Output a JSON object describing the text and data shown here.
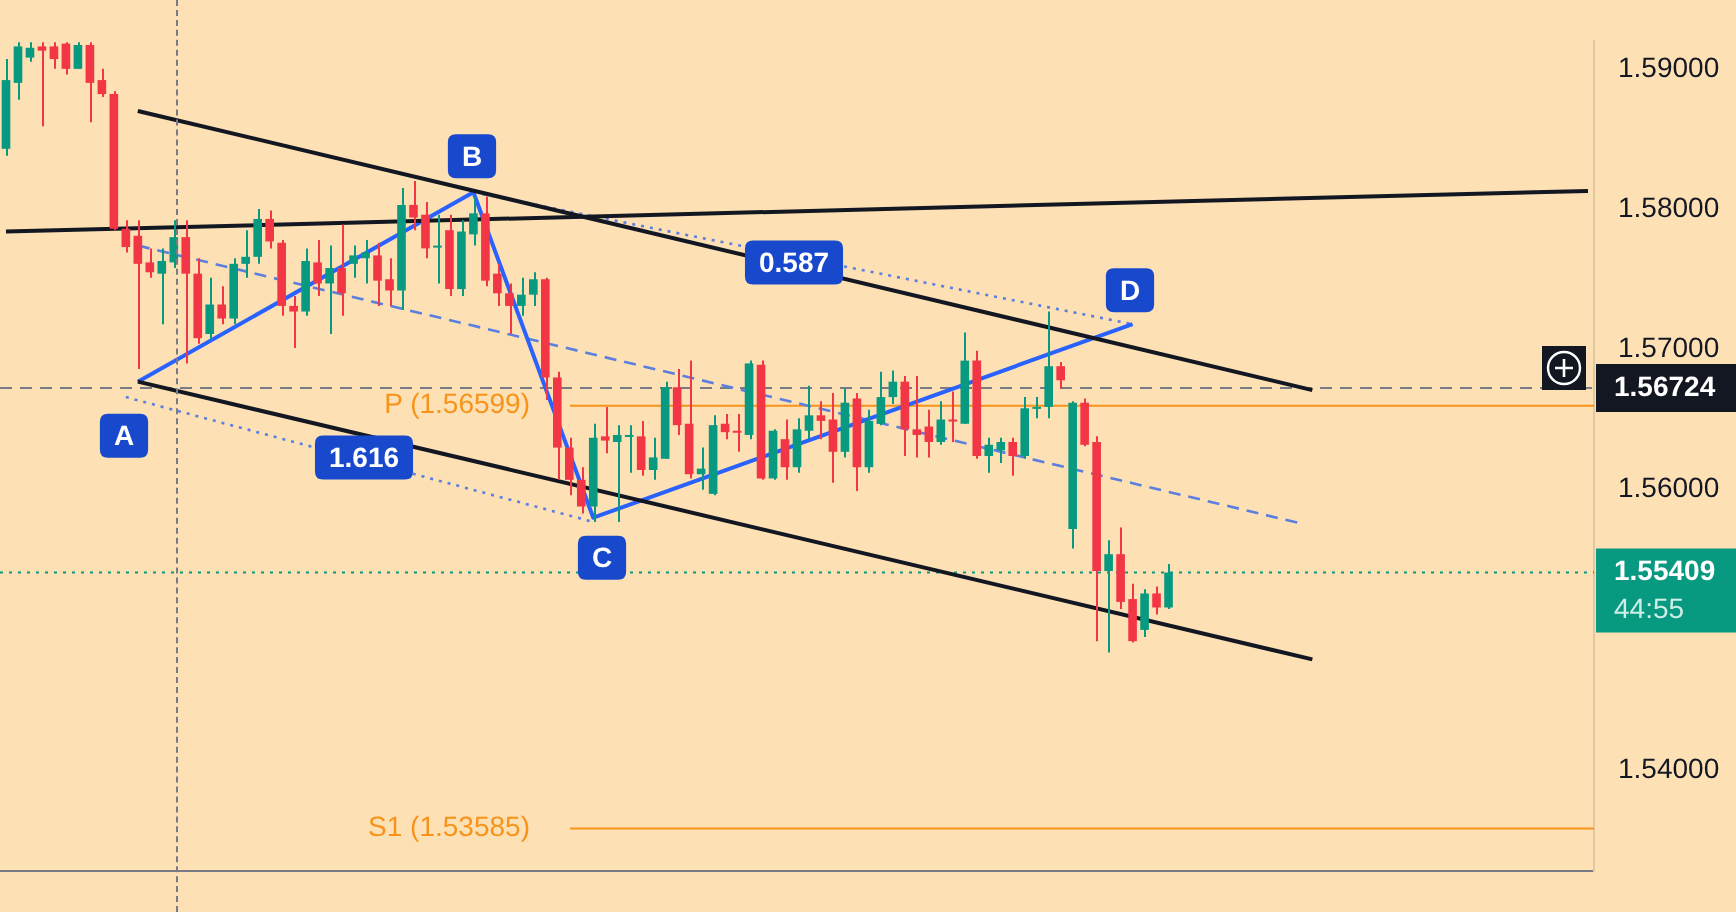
{
  "chart_data": {
    "type": "candlestick",
    "categories": [
      null,
      null,
      null,
      null,
      null,
      null,
      null,
      null,
      null,
      null,
      null,
      null,
      null,
      null,
      null,
      null,
      null,
      null,
      null,
      null,
      null,
      null,
      null,
      null,
      null,
      null,
      null,
      null,
      null,
      null,
      null,
      null,
      null,
      null,
      null,
      null,
      null,
      null,
      null,
      null,
      null,
      null,
      null,
      null,
      null,
      null,
      null,
      null,
      null,
      null,
      null,
      null,
      null,
      null,
      null,
      null,
      null,
      null,
      null,
      null,
      null,
      null,
      null,
      null,
      null,
      null,
      null,
      null,
      null,
      null,
      null,
      null,
      null,
      null,
      null,
      null,
      null,
      null,
      null,
      null,
      null,
      null,
      null,
      null,
      null,
      null,
      null,
      null,
      null,
      null,
      null,
      null,
      null,
      null,
      null,
      null,
      null,
      null,
      null,
      null,
      null,
      null,
      null,
      null,
      null,
      null,
      null,
      null,
      null,
      null,
      null,
      null,
      null,
      null,
      null,
      null,
      null,
      null,
      null,
      null,
      null,
      null,
      null,
      null,
      null,
      null,
      null,
      null,
      null,
      null,
      null,
      null,
      null
    ],
    "ohlc": [
      [
        1.5843,
        1.5907,
        1.5838,
        1.5892
      ],
      [
        1.589,
        1.5919,
        1.5878,
        1.5916
      ],
      [
        1.5908,
        1.5919,
        1.5905,
        1.5915
      ],
      [
        1.5916,
        1.5919,
        1.5859,
        1.5913
      ],
      [
        1.5916,
        1.5919,
        1.59,
        1.5907
      ],
      [
        1.5918,
        1.5919,
        1.5896,
        1.59
      ],
      [
        1.59,
        1.5919,
        1.59,
        1.5917
      ],
      [
        1.5917,
        1.5919,
        1.5862,
        1.589
      ],
      [
        1.5892,
        1.59,
        1.588,
        1.5882
      ],
      [
        1.5882,
        1.5884,
        1.5785,
        1.5786
      ],
      [
        1.5786,
        1.5792,
        1.5769,
        1.5773
      ],
      [
        1.5781,
        1.5792,
        1.5686,
        1.5761
      ],
      [
        1.5762,
        1.5772,
        1.5751,
        1.5755
      ],
      [
        1.5754,
        1.5772,
        1.5718,
        1.5763
      ],
      [
        1.5762,
        1.5792,
        1.5758,
        1.578
      ],
      [
        1.578,
        1.5792,
        1.569,
        1.5754
      ],
      [
        1.5754,
        1.5765,
        1.5704,
        1.5708
      ],
      [
        1.5711,
        1.5751,
        1.5707,
        1.5732
      ],
      [
        1.5732,
        1.5745,
        1.5718,
        1.5722
      ],
      [
        1.5722,
        1.5765,
        1.5718,
        1.5761
      ],
      [
        1.5761,
        1.5785,
        1.5751,
        1.5766
      ],
      [
        1.5766,
        1.58,
        1.5761,
        1.5793
      ],
      [
        1.5793,
        1.5799,
        1.5772,
        1.5777
      ],
      [
        1.5776,
        1.5778,
        1.5724,
        1.5731
      ],
      [
        1.5731,
        1.5738,
        1.5701,
        1.5727
      ],
      [
        1.5727,
        1.5772,
        1.5724,
        1.5763
      ],
      [
        1.5762,
        1.5778,
        1.5738,
        1.5747
      ],
      [
        1.5747,
        1.5774,
        1.5711,
        1.5758
      ],
      [
        1.5758,
        1.5789,
        1.5724,
        1.574
      ],
      [
        1.5761,
        1.5774,
        1.5751,
        1.5767
      ],
      [
        1.5765,
        1.5778,
        1.5747,
        1.5769
      ],
      [
        1.5767,
        1.5776,
        1.5731,
        1.5749
      ],
      [
        1.575,
        1.5765,
        1.5731,
        1.5742
      ],
      [
        1.5742,
        1.5815,
        1.5728,
        1.5803
      ],
      [
        1.5803,
        1.582,
        1.5785,
        1.5794
      ],
      [
        1.5796,
        1.5805,
        1.5765,
        1.5772
      ],
      [
        1.5773,
        1.5796,
        1.5747,
        1.5774
      ],
      [
        1.5785,
        1.5796,
        1.5738,
        1.5743
      ],
      [
        1.5743,
        1.5792,
        1.5738,
        1.5784
      ],
      [
        1.5782,
        1.5809,
        1.5774,
        1.5797
      ],
      [
        1.5797,
        1.5809,
        1.5745,
        1.5749
      ],
      [
        1.5754,
        1.5761,
        1.5731,
        1.574
      ],
      [
        1.574,
        1.5747,
        1.5711,
        1.5731
      ],
      [
        1.5731,
        1.5751,
        1.5724,
        1.5739
      ],
      [
        1.5739,
        1.5755,
        1.5731,
        1.575
      ],
      [
        1.575,
        1.5751,
        1.5664,
        1.568
      ],
      [
        1.568,
        1.5684,
        1.5607,
        1.563
      ],
      [
        1.563,
        1.5637,
        1.5596,
        1.5607
      ],
      [
        1.5607,
        1.5616,
        1.5583,
        1.5588
      ],
      [
        1.5588,
        1.5647,
        1.5577,
        1.5637
      ],
      [
        1.5638,
        1.5659,
        1.5626,
        1.5635
      ],
      [
        1.5634,
        1.5646,
        1.5577,
        1.5639
      ],
      [
        1.5638,
        1.5646,
        1.5612,
        1.5639
      ],
      [
        1.5638,
        1.5649,
        1.561,
        1.5614
      ],
      [
        1.5614,
        1.5637,
        1.5607,
        1.5623
      ],
      [
        1.5622,
        1.5677,
        1.5622,
        1.5673
      ],
      [
        1.5673,
        1.5686,
        1.5639,
        1.5646
      ],
      [
        1.5647,
        1.5692,
        1.5608,
        1.5611
      ],
      [
        1.5611,
        1.563,
        1.56,
        1.5615
      ],
      [
        1.5597,
        1.5653,
        1.5596,
        1.5646
      ],
      [
        1.5647,
        1.5654,
        1.5636,
        1.5641
      ],
      [
        1.5642,
        1.5654,
        1.5627,
        1.5641
      ],
      [
        1.5639,
        1.5692,
        1.5636,
        1.569
      ],
      [
        1.5689,
        1.5692,
        1.5607,
        1.5608
      ],
      [
        1.5608,
        1.5643,
        1.5607,
        1.5642
      ],
      [
        1.5636,
        1.565,
        1.5607,
        1.5616
      ],
      [
        1.5616,
        1.5651,
        1.5612,
        1.5643
      ],
      [
        1.5642,
        1.5674,
        1.5636,
        1.5653
      ],
      [
        1.5653,
        1.5663,
        1.5636,
        1.5649
      ],
      [
        1.565,
        1.5669,
        1.5605,
        1.5627
      ],
      [
        1.5627,
        1.5672,
        1.5623,
        1.5662
      ],
      [
        1.5665,
        1.5669,
        1.5599,
        1.5616
      ],
      [
        1.5616,
        1.5657,
        1.5612,
        1.5649
      ],
      [
        1.5647,
        1.5684,
        1.5646,
        1.5666
      ],
      [
        1.5666,
        1.5685,
        1.5661,
        1.5677
      ],
      [
        1.5677,
        1.5681,
        1.5624,
        1.5643
      ],
      [
        1.5643,
        1.5681,
        1.5623,
        1.5639
      ],
      [
        1.5645,
        1.5657,
        1.5623,
        1.5634
      ],
      [
        1.5634,
        1.5663,
        1.5632,
        1.565
      ],
      [
        1.565,
        1.567,
        1.5634,
        1.5649
      ],
      [
        1.5647,
        1.5712,
        1.5647,
        1.5692
      ],
      [
        1.5692,
        1.5699,
        1.5622,
        1.5624
      ],
      [
        1.5624,
        1.5637,
        1.5612,
        1.5632
      ],
      [
        1.5628,
        1.5637,
        1.5619,
        1.5634
      ],
      [
        1.5634,
        1.5637,
        1.561,
        1.5624
      ],
      [
        1.5624,
        1.5666,
        1.5622,
        1.5658
      ],
      [
        1.5658,
        1.5666,
        1.5651,
        1.5659
      ],
      [
        1.5659,
        1.5727,
        1.5651,
        1.5688
      ],
      [
        1.5688,
        1.5691,
        1.5672,
        1.5678
      ],
      [
        1.5572,
        1.5663,
        1.5558,
        1.5662
      ],
      [
        1.5662,
        1.5665,
        1.5631,
        1.5632
      ],
      [
        1.5634,
        1.5638,
        1.5492,
        1.5542
      ],
      [
        1.5542,
        1.5564,
        1.5484,
        1.5554
      ],
      [
        1.5554,
        1.5573,
        1.5515,
        1.552
      ],
      [
        1.5522,
        1.5533,
        1.5491,
        1.5492
      ],
      [
        1.55,
        1.5529,
        1.5495,
        1.5526
      ],
      [
        1.5526,
        1.5531,
        1.5511,
        1.5516
      ],
      [
        1.5516,
        1.5547,
        1.5515,
        1.55409
      ],
      null,
      null,
      null,
      null,
      null,
      null,
      null,
      null,
      null,
      null,
      null,
      null,
      null,
      null,
      null,
      null,
      null,
      null,
      null,
      null,
      null,
      null,
      null,
      null,
      null,
      null,
      null,
      null,
      null,
      null,
      null,
      null,
      null,
      null,
      null
    ],
    "colors": [
      "#089981",
      "#089981",
      "#089981",
      "#f23645",
      "#f23645",
      "#f23645",
      "#089981",
      "#f23645",
      "#f23645",
      "#f23645",
      "#f23645",
      "#f23645",
      "#f23645",
      "#089981",
      "#089981",
      "#f23645",
      "#f23645",
      "#089981",
      "#f23645",
      "#089981",
      "#089981",
      "#089981",
      "#f23645",
      "#f23645",
      "#f23645",
      "#089981",
      "#f23645",
      "#089981",
      "#f23645",
      "#089981",
      "#089981",
      "#f23645",
      "#f23645",
      "#089981",
      "#f23645",
      "#f23645",
      "#089981",
      "#f23645",
      "#089981",
      "#089981",
      "#f23645",
      "#f23645",
      "#f23645",
      "#089981",
      "#089981",
      "#f23645",
      "#f23645",
      "#f23645",
      "#f23645",
      "#089981",
      "#f23645",
      "#089981",
      "#089981",
      "#f23645",
      "#089981",
      "#089981",
      "#f23645",
      "#f23645",
      "#089981",
      "#089981",
      "#f23645",
      "#f23645",
      "#089981",
      "#f23645",
      "#089981",
      "#f23645",
      "#089981",
      "#089981",
      "#f23645",
      "#f23645",
      "#089981",
      "#f23645",
      "#089981",
      "#089981",
      "#089981",
      "#f23645",
      "#f23645",
      "#f23645",
      "#089981",
      "#f23645",
      "#089981",
      "#f23645",
      "#089981",
      "#089981",
      "#f23645",
      "#089981",
      "#089981",
      "#089981",
      "#f23645",
      "#089981",
      "#f23645",
      "#f23645",
      "#089981",
      "#f23645",
      "#f23645",
      "#089981",
      "#f23645",
      "#089981",
      null,
      null,
      null,
      null,
      null,
      null,
      null,
      null,
      null,
      null,
      null,
      null,
      null,
      null,
      null,
      null,
      null,
      null,
      null,
      null,
      null,
      null,
      null,
      null,
      null,
      null,
      null,
      null,
      null,
      null,
      null,
      null,
      null,
      null,
      null
    ],
    "series": [
      {
        "type": "line",
        "color": "#131722",
        "line_style": "solid",
        "values": [
          null,
          null,
          null,
          null,
          null,
          null,
          null,
          null,
          null,
          null,
          null,
          1.587,
          null,
          null,
          null,
          null,
          null,
          null,
          null,
          null,
          null,
          null,
          null,
          null,
          null,
          null,
          null,
          null,
          null,
          null,
          null,
          null,
          null,
          null,
          null,
          null,
          null,
          null,
          null,
          null,
          null,
          null,
          null,
          null,
          null,
          null,
          null,
          null,
          null,
          null,
          null,
          null,
          null,
          null,
          null,
          null,
          null,
          null,
          null,
          null,
          null,
          null,
          null,
          null,
          null,
          null,
          null,
          null,
          null,
          null,
          null,
          null,
          null,
          null,
          null,
          null,
          null,
          null,
          null,
          null,
          null,
          null,
          null,
          null,
          null,
          null,
          null,
          null,
          null,
          null,
          null,
          null,
          null,
          null,
          null,
          null,
          null,
          null,
          null,
          null,
          null,
          null,
          null,
          null,
          null,
          null,
          null,
          null,
          null,
          1.5671,
          null,
          null,
          null,
          null,
          null,
          null,
          null,
          null,
          null,
          null,
          null,
          null,
          null,
          null,
          null,
          null,
          null,
          null,
          null,
          null,
          null,
          null,
          null
        ]
      },
      {
        "type": "line",
        "color": "#131722",
        "line_style": "solid",
        "values": [
          null,
          null,
          null,
          null,
          null,
          null,
          null,
          null,
          null,
          null,
          null,
          1.5677,
          null,
          null,
          null,
          null,
          null,
          null,
          null,
          null,
          null,
          null,
          null,
          null,
          null,
          null,
          null,
          null,
          null,
          null,
          null,
          null,
          null,
          null,
          null,
          null,
          null,
          null,
          null,
          null,
          null,
          null,
          null,
          null,
          null,
          null,
          null,
          null,
          null,
          null,
          null,
          null,
          null,
          null,
          null,
          null,
          null,
          null,
          null,
          null,
          null,
          null,
          null,
          null,
          null,
          null,
          null,
          null,
          null,
          null,
          null,
          null,
          null,
          null,
          null,
          null,
          null,
          null,
          null,
          null,
          null,
          null,
          null,
          null,
          null,
          null,
          null,
          null,
          null,
          null,
          null,
          null,
          null,
          null,
          null,
          null,
          null,
          null,
          null,
          null,
          null,
          null,
          null,
          null,
          null,
          null,
          null,
          null,
          null,
          1.5479,
          null,
          null,
          null,
          null,
          null,
          null,
          null,
          null,
          null,
          null,
          null,
          null,
          null,
          null,
          null,
          null,
          null,
          null,
          null,
          null,
          null,
          null,
          null
        ]
      },
      {
        "type": "line",
        "color": "#131722",
        "line_style": "solid",
        "values": [
          1.5784,
          null,
          null,
          null,
          null,
          null,
          null,
          null,
          null,
          null,
          null,
          null,
          null,
          null,
          null,
          null,
          null,
          null,
          null,
          null,
          null,
          null,
          null,
          null,
          null,
          null,
          null,
          null,
          null,
          null,
          null,
          null,
          null,
          null,
          null,
          null,
          null,
          null,
          null,
          null,
          null,
          null,
          null,
          null,
          null,
          null,
          null,
          null,
          null,
          null,
          null,
          null,
          null,
          null,
          null,
          null,
          null,
          null,
          null,
          null,
          null,
          null,
          null,
          null,
          null,
          null,
          null,
          null,
          null,
          null,
          null,
          null,
          null,
          null,
          null,
          null,
          null,
          null,
          null,
          null,
          null,
          null,
          null,
          null,
          null,
          null,
          null,
          null,
          null,
          null,
          null,
          null,
          null,
          null,
          null,
          null,
          null,
          null,
          null,
          null,
          null,
          null,
          null,
          null,
          null,
          null,
          null,
          null,
          null,
          null,
          null,
          null,
          null,
          null,
          null,
          null,
          null,
          null,
          null,
          null,
          null,
          null,
          null,
          null,
          null,
          null,
          null,
          null,
          null,
          null,
          null,
          null,
          1.5813
        ]
      },
      {
        "type": "line",
        "color": "#2962ff",
        "line_style": "solid",
        "values": [
          null,
          null,
          null,
          null,
          null,
          null,
          null,
          null,
          null,
          null,
          null,
          1.5677,
          null,
          null,
          null,
          null,
          null,
          null,
          null,
          null,
          null,
          null,
          null,
          null,
          null,
          null,
          null,
          null,
          null,
          null,
          null,
          null,
          null,
          null,
          null,
          null,
          null,
          null,
          null,
          1.5812,
          null,
          null,
          null,
          null,
          null,
          null,
          null,
          null,
          null,
          1.558,
          null,
          null,
          null,
          null,
          null,
          null,
          null,
          null,
          null,
          null,
          null,
          null,
          null,
          null,
          null,
          null,
          null,
          null,
          null,
          null,
          null,
          null,
          null,
          null,
          null,
          null,
          null,
          null,
          null,
          null,
          null,
          null,
          null,
          null,
          null,
          null,
          null,
          null,
          null,
          null,
          null,
          null,
          null,
          null,
          1.5718,
          null,
          null,
          null,
          null,
          null,
          null,
          null,
          null,
          null,
          null,
          null,
          null,
          null,
          null,
          null,
          null,
          null,
          null,
          null,
          null,
          null,
          null,
          null,
          null,
          null,
          null,
          null,
          null,
          null,
          null,
          null,
          null,
          null,
          null,
          null,
          null,
          null,
          null
        ]
      },
      {
        "type": "line",
        "color": "#5b7fe0",
        "line_style": "dashed",
        "values": [
          null,
          null,
          null,
          null,
          null,
          null,
          null,
          null,
          null,
          null,
          null,
          1.5774,
          null,
          null,
          null,
          null,
          null,
          null,
          null,
          null,
          null,
          null,
          null,
          null,
          null,
          null,
          null,
          null,
          null,
          null,
          null,
          null,
          null,
          null,
          null,
          null,
          null,
          null,
          null,
          null,
          null,
          null,
          null,
          null,
          null,
          null,
          null,
          null,
          null,
          null,
          null,
          null,
          null,
          null,
          null,
          null,
          null,
          null,
          null,
          null,
          null,
          null,
          null,
          null,
          null,
          null,
          null,
          null,
          null,
          null,
          null,
          null,
          null,
          null,
          null,
          null,
          null,
          null,
          null,
          null,
          null,
          null,
          null,
          null,
          null,
          null,
          null,
          null,
          null,
          null,
          null,
          null,
          null,
          null,
          null,
          null,
          null,
          null,
          null,
          null,
          null,
          null,
          null,
          null,
          null,
          null,
          null,
          null,
          1.5576,
          null,
          null,
          null,
          null,
          null,
          null,
          null,
          null,
          null,
          null,
          null,
          null,
          null,
          null,
          null,
          null,
          null,
          null,
          null,
          null,
          null,
          null,
          null,
          null
        ]
      },
      {
        "type": "line",
        "color": "#5b7fe0",
        "line_style": "dotted",
        "values": [
          null,
          null,
          null,
          null,
          null,
          null,
          null,
          null,
          null,
          null,
          null,
          null,
          null,
          null,
          null,
          null,
          null,
          null,
          null,
          null,
          null,
          null,
          null,
          null,
          null,
          null,
          null,
          null,
          null,
          null,
          null,
          null,
          null,
          null,
          null,
          null,
          null,
          null,
          null,
          1.5812,
          null,
          null,
          null,
          null,
          null,
          null,
          null,
          null,
          null,
          null,
          null,
          null,
          null,
          null,
          null,
          null,
          null,
          null,
          null,
          null,
          null,
          null,
          null,
          null,
          null,
          null,
          null,
          null,
          null,
          null,
          null,
          null,
          null,
          null,
          null,
          null,
          null,
          null,
          null,
          null,
          null,
          null,
          null,
          null,
          null,
          null,
          null,
          null,
          null,
          null,
          null,
          null,
          null,
          null,
          1.5718,
          null,
          null,
          null,
          null,
          null,
          null,
          null,
          null,
          null,
          null,
          null,
          null,
          null,
          null,
          null,
          null,
          null,
          null,
          null,
          null,
          null,
          null,
          null,
          null,
          null,
          null,
          null,
          null,
          null,
          null,
          null,
          null,
          null,
          null,
          null,
          null,
          null,
          null
        ]
      },
      {
        "type": "line",
        "color": "#5b7fe0",
        "line_style": "dotted",
        "values": [
          null,
          null,
          null,
          null,
          null,
          null,
          null,
          null,
          null,
          null,
          1.5666,
          null,
          null,
          null,
          null,
          null,
          null,
          null,
          null,
          null,
          null,
          null,
          null,
          null,
          null,
          null,
          null,
          null,
          null,
          null,
          null,
          null,
          null,
          null,
          null,
          null,
          null,
          null,
          null,
          null,
          null,
          null,
          null,
          null,
          null,
          null,
          null,
          null,
          null,
          1.5577,
          null,
          null,
          null,
          null,
          null,
          null,
          null,
          null,
          null,
          null,
          null,
          null,
          null,
          null,
          null,
          null,
          null,
          null,
          null,
          null,
          null,
          null,
          null,
          null,
          null,
          null,
          null,
          null,
          null,
          null,
          null,
          null,
          null,
          null,
          null,
          null,
          null,
          null,
          null,
          null,
          null,
          null,
          null,
          null,
          null,
          null,
          null,
          null,
          null,
          null,
          null,
          null,
          null,
          null,
          null,
          null,
          null,
          null,
          null,
          null,
          null,
          null,
          null,
          null,
          null,
          null,
          null,
          null,
          null,
          null,
          null,
          null,
          null,
          null,
          null,
          null,
          null,
          null,
          null,
          null,
          null,
          null,
          null
        ]
      }
    ],
    "ylim": [
      1.5328,
      1.592
    ],
    "yticks": [
      {
        "value": 1.54,
        "label": "1.54000"
      },
      {
        "value": 1.56,
        "label": "1.56000"
      },
      {
        "value": 1.57,
        "label": "1.57000"
      },
      {
        "value": 1.58,
        "label": "1.58000"
      },
      {
        "value": 1.59,
        "label": "1.59000"
      }
    ],
    "tick_labels": "y",
    "grid": false,
    "legend": false,
    "marker": "none",
    "ref_lines": [
      {
        "axis": "y",
        "value": 1.56724,
        "label": "1.56724",
        "color": "#787b86",
        "line_style": "dashed"
      },
      {
        "axis": "y",
        "value": 1.55409,
        "label": "1.55409",
        "color": "#089981",
        "line_style": "dotted"
      },
      {
        "axis": "y",
        "value": 1.56599,
        "label": "P (1.56599)",
        "color": "#f7931a",
        "line_style": "solid"
      },
      {
        "axis": "y",
        "value": 1.53585,
        "label": "S1 (1.53585)",
        "color": "#f7931a",
        "line_style": "solid"
      }
    ],
    "annotations": [
      {
        "text": "A",
        "y": 1.5677
      },
      {
        "text": "B",
        "y": 1.5812
      },
      {
        "text": "C",
        "y": 1.558
      },
      {
        "text": "D",
        "y": 1.5718
      },
      {
        "text": "0.587",
        "y": 1.5762
      },
      {
        "text": "1.616",
        "y": 1.5623
      },
      "44:55"
    ]
  }
}
